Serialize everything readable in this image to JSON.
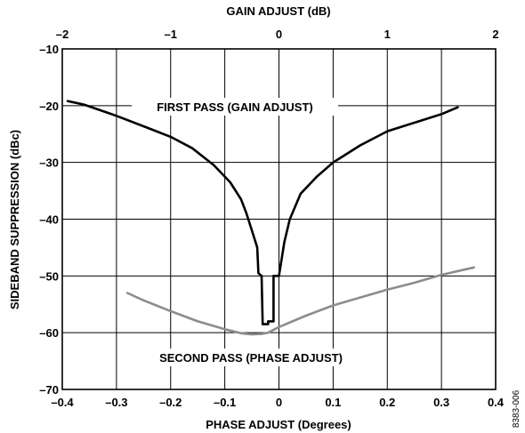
{
  "chart_data": {
    "type": "line",
    "xlabel": "PHASE ADJUST (Degrees)",
    "x2label": "GAIN ADJUST (dB)",
    "ylabel": "SIDEBAND SUPPRESSION (dBc)",
    "xlim": [
      -0.4,
      0.4
    ],
    "x2lim": [
      -2,
      2
    ],
    "ylim": [
      -70,
      -10
    ],
    "x_ticks": [
      -0.4,
      -0.3,
      -0.2,
      -0.1,
      0,
      0.1,
      0.2,
      0.3,
      0.4
    ],
    "x_tick_labels": [
      "–0.4",
      "–0.3",
      "–0.2",
      "–0.1",
      "0",
      "0.1",
      "0.2",
      "0.3",
      "0.4"
    ],
    "x2_ticks": [
      -2,
      -1,
      0,
      1,
      2
    ],
    "x2_tick_labels": [
      "–2",
      "–1",
      "0",
      "1",
      "2"
    ],
    "y_ticks": [
      -70,
      -60,
      -50,
      -40,
      -30,
      -20,
      -10
    ],
    "y_tick_labels": [
      "–70",
      "–60",
      "–50",
      "–40",
      "–30",
      "–20",
      "–10"
    ],
    "grid": true,
    "series": [
      {
        "name": "FIRST PASS (GAIN ADJUST)",
        "axis": "top-x",
        "color": "#000000",
        "x": [
          -1.95,
          -1.8,
          -1.5,
          -1.2,
          -1.0,
          -0.8,
          -0.6,
          -0.45,
          -0.35,
          -0.3,
          -0.25,
          -0.2,
          -0.19,
          -0.16,
          -0.15,
          -0.1,
          -0.1,
          -0.05,
          -0.05,
          0.0,
          0.05,
          0.1,
          0.2,
          0.35,
          0.5,
          0.75,
          1.0,
          1.25,
          1.5,
          1.65
        ],
        "y": [
          -19.2,
          -19.8,
          -21.8,
          -24.0,
          -25.5,
          -27.5,
          -30.5,
          -33.5,
          -36.5,
          -39.0,
          -42.0,
          -45.0,
          -49.5,
          -50.0,
          -58.5,
          -58.5,
          -58.0,
          -58.0,
          -50.0,
          -50.0,
          -44.0,
          -40.0,
          -35.5,
          -32.5,
          -30.0,
          -27.0,
          -24.5,
          -23.0,
          -21.5,
          -20.3
        ]
      },
      {
        "name": "SECOND PASS (PHASE ADJUST)",
        "axis": "bottom-x",
        "color": "#8c8c8c",
        "x": [
          -0.28,
          -0.25,
          -0.2,
          -0.15,
          -0.1,
          -0.07,
          -0.05,
          -0.03,
          -0.02,
          0.0,
          0.05,
          0.1,
          0.15,
          0.2,
          0.25,
          0.3,
          0.36
        ],
        "y": [
          -53.0,
          -54.3,
          -56.2,
          -58.0,
          -59.4,
          -60.1,
          -60.3,
          -60.2,
          -60.0,
          -59.0,
          -57.0,
          -55.2,
          -53.8,
          -52.4,
          -51.2,
          -49.8,
          -48.5
        ]
      }
    ],
    "annotations": [
      "FIRST PASS (GAIN ADJUST)",
      "SECOND PASS (PHASE ADJUST)"
    ],
    "figure_code": "8383-006"
  }
}
